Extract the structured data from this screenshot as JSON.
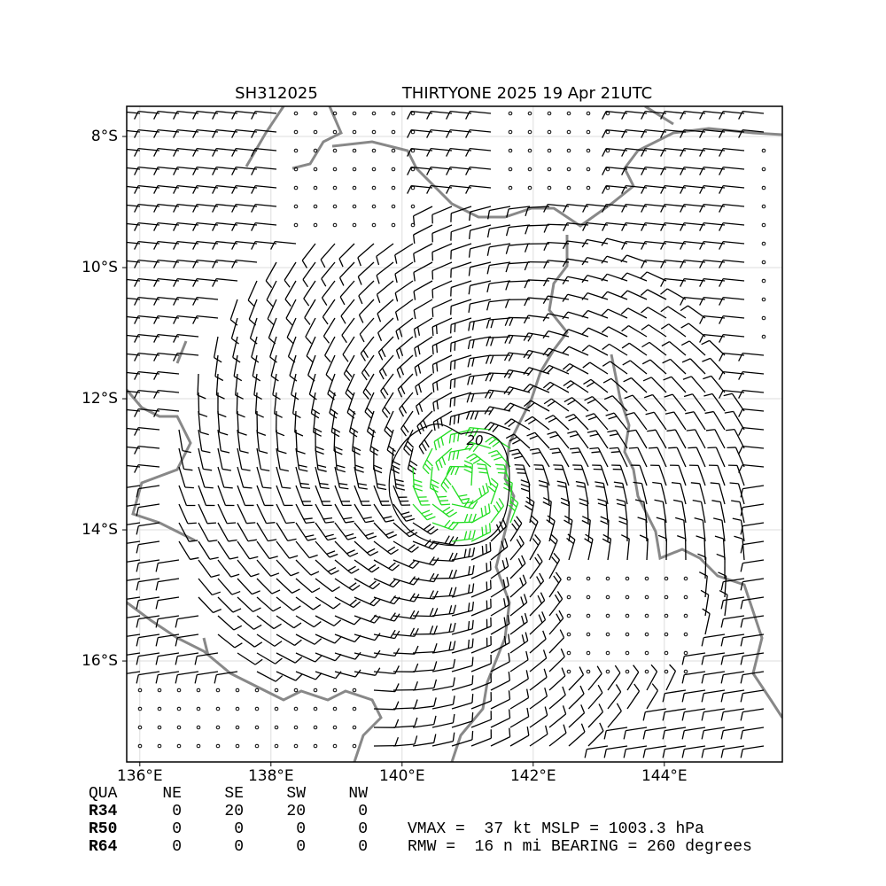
{
  "chart_data": {
    "type": "wind-map",
    "title_left": "SH312025",
    "title_right": "THIRTYONE 2025 19 Apr 21UTC",
    "xlim": [
      135.8,
      145.8
    ],
    "ylim": [
      -17.54,
      -7.54
    ],
    "xticks": [
      {
        "value": 136,
        "label": "136°E"
      },
      {
        "value": 138,
        "label": "138°E"
      },
      {
        "value": 140,
        "label": "140°E"
      },
      {
        "value": 142,
        "label": "142°E"
      },
      {
        "value": 144,
        "label": "144°E"
      }
    ],
    "yticks": [
      {
        "value": -8,
        "label": "8°S"
      },
      {
        "value": -10,
        "label": "10°S"
      },
      {
        "value": -12,
        "label": "12°S"
      },
      {
        "value": -14,
        "label": "14°S"
      },
      {
        "value": -16,
        "label": "16°S"
      }
    ],
    "grid": true,
    "contour_label": "20",
    "table": {
      "header": [
        "QUA",
        "NE",
        "SE",
        "SW",
        "NW"
      ],
      "rows": [
        [
          "R34",
          0,
          20,
          20,
          0
        ],
        [
          "R50",
          0,
          0,
          0,
          0
        ],
        [
          "R64",
          0,
          0,
          0,
          0
        ]
      ]
    },
    "info": [
      "VMAX =  37 kt MSLP = 1003.3 hPa",
      "RMW =  16 n mi BEARING = 260 degrees"
    ]
  }
}
